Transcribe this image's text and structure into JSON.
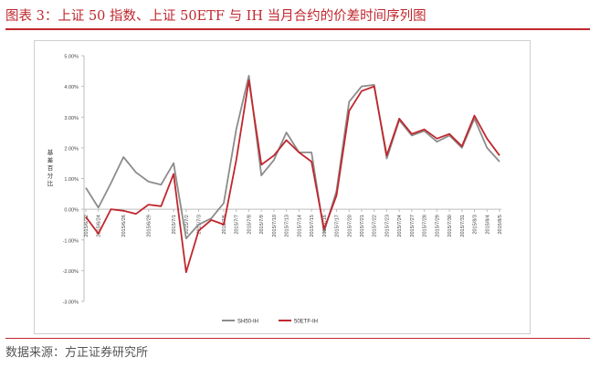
{
  "figure": {
    "title": "图表 3：上证 50 指数、上证 50ETF 与 IH 当月合约的价差时间序列图",
    "source": "数据来源：方正证券研究所"
  },
  "chart_data": {
    "type": "line",
    "title": "",
    "xlabel": "",
    "ylabel": "基差百分比",
    "ylim": [
      -3,
      5
    ],
    "yticks": [
      -3,
      -2,
      -1,
      0,
      1,
      2,
      3,
      4,
      5
    ],
    "ytick_labels": [
      "-3.00%",
      "-2.00%",
      "-1.00%",
      "0.00%",
      "1.00%",
      "2.00%",
      "3.00%",
      "4.00%",
      "5.00%"
    ],
    "grid": false,
    "legend_position": "bottom",
    "x": [
      "2015/6/22",
      "2015/6/24",
      "2015/6/25",
      "2015/6/26",
      "2015/6/27",
      "2015/6/29",
      "2015/6/30",
      "2015/7/1",
      "2015/7/2",
      "2015/7/3",
      "2015/7/4",
      "2015/7/6",
      "2015/7/7",
      "2015/7/8",
      "2015/7/9",
      "2015/7/10",
      "2015/7/13",
      "2015/7/14",
      "2015/7/15",
      "2015/7/16",
      "2015/7/17",
      "2015/7/20",
      "2015/7/21",
      "2015/7/22",
      "2015/7/23",
      "2015/7/24",
      "2015/7/27",
      "2015/7/28",
      "2015/7/29",
      "2015/7/30",
      "2015/7/31",
      "2015/8/3",
      "2015/8/4",
      "2015/8/5"
    ],
    "xtick_labels": [
      "2015/6/22",
      "2015/6/24",
      "2015/6/26",
      "2015/6/29",
      "2015/7/1",
      "2015/7/2",
      "2015/7/3",
      "2015/7/6",
      "2015/7/7",
      "2015/7/8",
      "2015/7/9",
      "2015/7/10",
      "2015/7/13",
      "2015/7/14",
      "2015/7/15",
      "2015/7/16",
      "2015/7/17",
      "2015/7/20",
      "2015/7/21",
      "2015/7/22",
      "2015/7/23",
      "2015/7/24",
      "2015/7/27",
      "2015/7/28",
      "2015/7/29",
      "2015/7/30",
      "2015/7/31",
      "2015/8/3",
      "2015/8/4",
      "2015/8/5"
    ],
    "xtick_index": [
      0,
      1,
      3,
      5,
      7,
      8,
      9,
      11,
      12,
      13,
      14,
      15,
      16,
      17,
      18,
      19,
      20,
      21,
      22,
      23,
      24,
      25,
      26,
      27,
      28,
      29,
      30,
      31,
      32,
      33
    ],
    "series": [
      {
        "name": "SH50-IH",
        "color": "#8c8c8c",
        "values": [
          0.7,
          0.05,
          0.85,
          1.7,
          1.2,
          0.9,
          0.8,
          1.5,
          -0.95,
          -0.5,
          -0.3,
          0.2,
          2.6,
          4.35,
          1.1,
          1.6,
          2.5,
          1.85,
          1.85,
          -0.75,
          0.6,
          3.5,
          4.0,
          4.05,
          1.65,
          2.9,
          2.4,
          2.55,
          2.2,
          2.4,
          2.0,
          2.95,
          2.0,
          1.55
        ]
      },
      {
        "name": "50ETF-IH",
        "color": "#c0272d",
        "values": [
          -0.25,
          -0.8,
          0.0,
          -0.05,
          -0.15,
          0.15,
          0.1,
          1.15,
          -2.05,
          -0.7,
          -0.35,
          -0.5,
          1.6,
          4.2,
          1.45,
          1.75,
          2.25,
          1.85,
          1.55,
          -0.65,
          0.45,
          3.2,
          3.85,
          4.0,
          1.75,
          2.95,
          2.45,
          2.6,
          2.3,
          2.45,
          2.05,
          3.05,
          2.3,
          1.75
        ]
      }
    ]
  }
}
